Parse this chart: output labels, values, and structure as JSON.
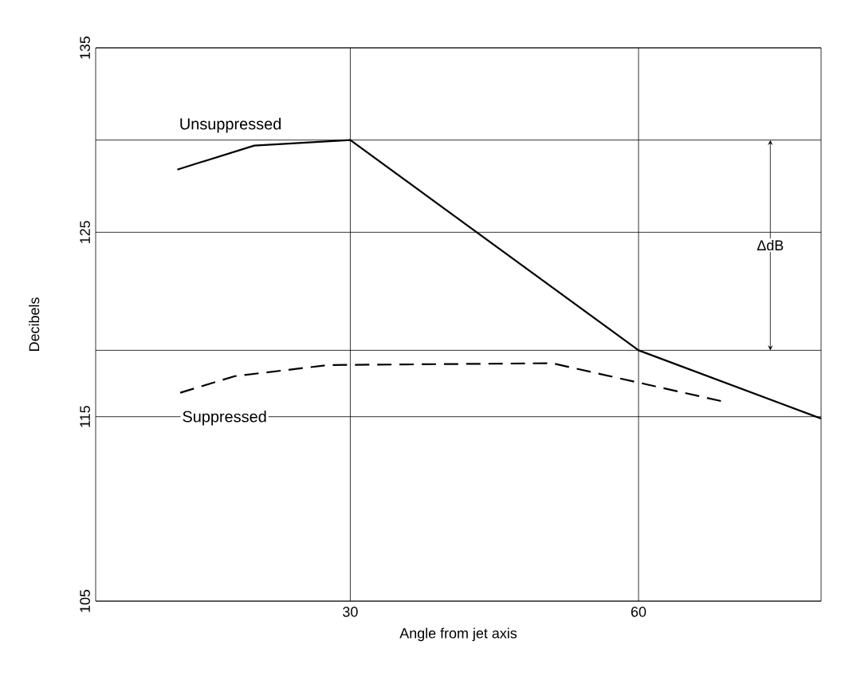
{
  "chart_data": {
    "type": "line",
    "xlabel": "Angle from jet axis",
    "ylabel": "Decibels",
    "xlim": [
      3.5,
      79
    ],
    "ylim": [
      105,
      135
    ],
    "xticks": [
      30,
      60
    ],
    "yticks": [
      105,
      115,
      125,
      135
    ],
    "grid": true,
    "legend": false,
    "series": [
      {
        "name": "Unsuppressed",
        "color": "#000000",
        "line_style": "solid",
        "x": [
          12,
          20,
          30,
          60,
          79
        ],
        "values": [
          128.4,
          129.7,
          130,
          118.6,
          114.9
        ]
      },
      {
        "name": "Suppressed",
        "color": "#000000",
        "line_style": "dashed",
        "x": [
          12.3,
          18,
          27.7,
          51,
          69
        ],
        "values": [
          116.3,
          117.2,
          117.8,
          117.9,
          115.8
        ]
      }
    ],
    "ref_lines": [
      {
        "axis": "y",
        "value": 130
      },
      {
        "axis": "y",
        "value": 118.6
      }
    ],
    "annotations": [
      "ΔdB"
    ]
  }
}
